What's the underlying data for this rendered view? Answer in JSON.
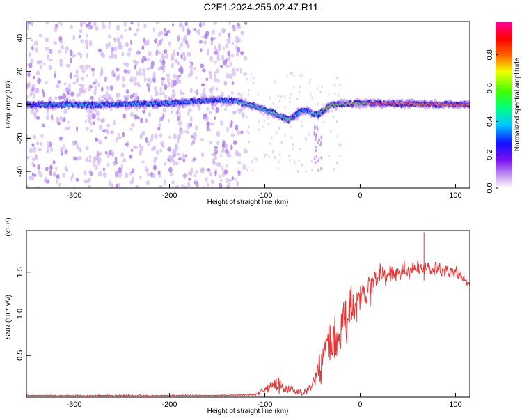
{
  "figure_title": "C2E1.2024.255.02.47.R11",
  "colors": {
    "snr_line": "#ee3333",
    "spectral_core": "#00e0d0",
    "spectral_mid": "#2010f0",
    "spectral_faint": "#b080ee",
    "spectral_dot": "#d4b6f4"
  },
  "chart_data": [
    {
      "type": "heatmap",
      "title": "",
      "xlabel": "Height of straight line (km)",
      "ylabel": "Frequency (Hz)",
      "xlim": [
        -350,
        115
      ],
      "ylim": [
        -50,
        50
      ],
      "x_ticks": [
        -300,
        -200,
        -100,
        0,
        100
      ],
      "y_ticks": [
        -40,
        -20,
        0,
        20,
        40
      ],
      "colorbar": {
        "label": "Normalized spectral amplitude",
        "range": [
          0,
          1
        ],
        "ticks": [
          "0.0",
          "0.2",
          "0.4",
          "0.6",
          "0.8"
        ],
        "colormap": "rainbow (white-purple-blue-cyan-green-yellow-red-magenta)"
      },
      "ridge": [
        {
          "x": -350,
          "freq": 0
        },
        {
          "x": -280,
          "freq": 0
        },
        {
          "x": -200,
          "freq": 1
        },
        {
          "x": -150,
          "freq": 3
        },
        {
          "x": -130,
          "freq": 2
        },
        {
          "x": -110,
          "freq": -1
        },
        {
          "x": -90,
          "freq": -5
        },
        {
          "x": -75,
          "freq": -9
        },
        {
          "x": -60,
          "freq": -3
        },
        {
          "x": -45,
          "freq": -6
        },
        {
          "x": -30,
          "freq": 0
        },
        {
          "x": 0,
          "freq": 1
        },
        {
          "x": 115,
          "freq": 0
        }
      ],
      "amplitude_profile": [
        {
          "x": -350,
          "amp": 0.15
        },
        {
          "x": -280,
          "amp": 0.3
        },
        {
          "x": -200,
          "amp": 0.35
        },
        {
          "x": -150,
          "amp": 0.35
        },
        {
          "x": -120,
          "amp": 0.4
        },
        {
          "x": -80,
          "amp": 0.45
        },
        {
          "x": -60,
          "amp": 0.3
        },
        {
          "x": -30,
          "amp": 0.7
        },
        {
          "x": 0,
          "amp": 0.8
        },
        {
          "x": 30,
          "amp": 0.95
        },
        {
          "x": 115,
          "amp": 1.0
        }
      ],
      "grid": false,
      "legend": "colorbar-right"
    },
    {
      "type": "line",
      "title": "",
      "xlabel": "Height of straight line (km)",
      "ylabel": "SNR (10 * v/v)",
      "y_multiplier": "(x10⁴)",
      "xlim": [
        -350,
        115
      ],
      "ylim": [
        0,
        2.0
      ],
      "x_ticks": [
        -300,
        -200,
        -100,
        0,
        100
      ],
      "y_ticks": [
        0.5,
        1.0,
        1.5
      ],
      "y_tick_labels": [
        "0.5",
        "1.0",
        "1.5"
      ],
      "series": [
        {
          "envelope": [
            {
              "x": -350,
              "mean": 0.02,
              "spread": 0.01
            },
            {
              "x": -250,
              "mean": 0.02,
              "spread": 0.015
            },
            {
              "x": -150,
              "mean": 0.02,
              "spread": 0.01
            },
            {
              "x": -110,
              "mean": 0.03,
              "spread": 0.02
            },
            {
              "x": -95,
              "mean": 0.12,
              "spread": 0.1
            },
            {
              "x": -85,
              "mean": 0.15,
              "spread": 0.15
            },
            {
              "x": -75,
              "mean": 0.1,
              "spread": 0.1
            },
            {
              "x": -60,
              "mean": 0.05,
              "spread": 0.05
            },
            {
              "x": -50,
              "mean": 0.15,
              "spread": 0.1
            },
            {
              "x": -45,
              "mean": 0.3,
              "spread": 0.3
            },
            {
              "x": -35,
              "mean": 0.6,
              "spread": 0.45
            },
            {
              "x": -25,
              "mean": 0.8,
              "spread": 0.5
            },
            {
              "x": -10,
              "mean": 1.0,
              "spread": 0.45
            },
            {
              "x": 0,
              "mean": 1.2,
              "spread": 0.35
            },
            {
              "x": 20,
              "mean": 1.45,
              "spread": 0.2
            },
            {
              "x": 40,
              "mean": 1.5,
              "spread": 0.15
            },
            {
              "x": 70,
              "mean": 1.55,
              "spread": 0.15
            },
            {
              "x": 100,
              "mean": 1.5,
              "spread": 0.12
            },
            {
              "x": 115,
              "mean": 1.35,
              "spread": 0.05
            }
          ],
          "peak": {
            "x": 67,
            "value": 1.98
          }
        }
      ],
      "grid": false
    }
  ]
}
